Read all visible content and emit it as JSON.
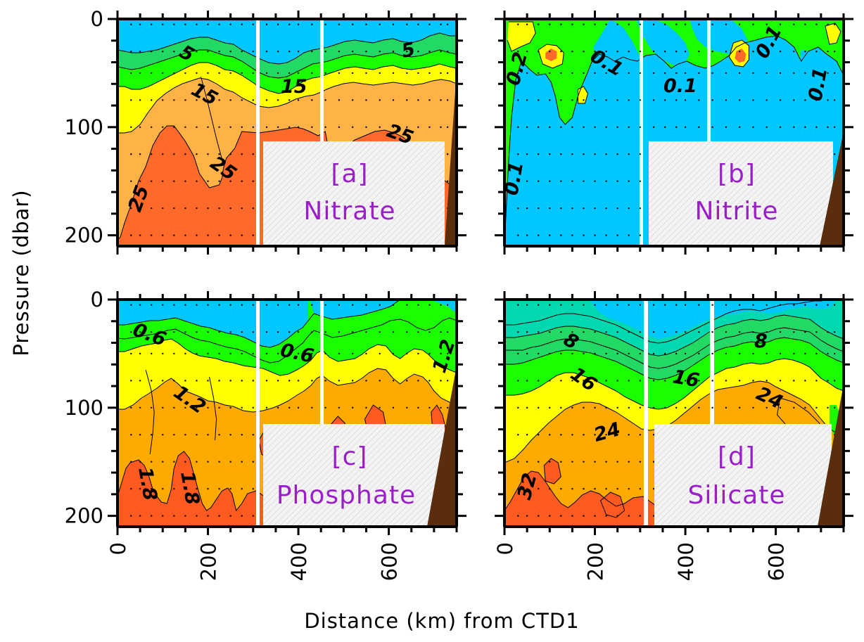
{
  "chart_data": {
    "type": "contour",
    "xlabel": "Distance (km) from CTD1",
    "ylabel": "Pressure (dbar)",
    "xlim": [
      0,
      750
    ],
    "ylim": [
      0,
      210
    ],
    "y_inverted": true,
    "x_ticks": [
      "0",
      "200",
      "400",
      "600"
    ],
    "y_ticks": [
      "0",
      "100",
      "200"
    ],
    "panels": [
      {
        "id": "a",
        "tag": "[a]",
        "name": "Nitrate",
        "contour_labels": [
          "5",
          "15",
          "15",
          "5",
          "25",
          "25",
          "25"
        ],
        "colors": {
          "low": "#00c8ff",
          "mid1": "#22d966",
          "mid2": "#19ff00",
          "mid3": "#ffff00",
          "mid4": "#ffb347",
          "high": "#ff6a2a"
        }
      },
      {
        "id": "b",
        "tag": "[b]",
        "name": "Nitrite",
        "contour_labels": [
          "0.2",
          "0.1",
          "0.1",
          "0.1",
          "0.1",
          "0.1"
        ],
        "colors": {
          "low": "#00c8ff",
          "mid": "#19ff00",
          "high": "#ffff00",
          "peak": "#ff6a2a"
        }
      },
      {
        "id": "c",
        "tag": "[c]",
        "name": "Phosphate",
        "contour_labels": [
          "0.6",
          "0.6",
          "1.2",
          "1.2",
          "1.8",
          "1.8"
        ],
        "colors": {
          "low": "#00c8ff",
          "mid1": "#19ff00",
          "mid2": "#ffff00",
          "mid3": "#ffaa00",
          "high": "#ff5a1f"
        }
      },
      {
        "id": "d",
        "tag": "[d]",
        "name": "Silicate",
        "contour_labels": [
          "8",
          "8",
          "16",
          "16",
          "24",
          "24",
          "32"
        ],
        "colors": {
          "low": "#00c8ff",
          "mid1": "#00d9b0",
          "mid2": "#22d966",
          "mid3": "#19ff00",
          "mid4": "#ffff00",
          "mid5": "#ffaa00",
          "high": "#ff5a1f"
        }
      }
    ],
    "seafloor_color": "#5a2d0c",
    "no_data_fill": "hatched light grey"
  }
}
